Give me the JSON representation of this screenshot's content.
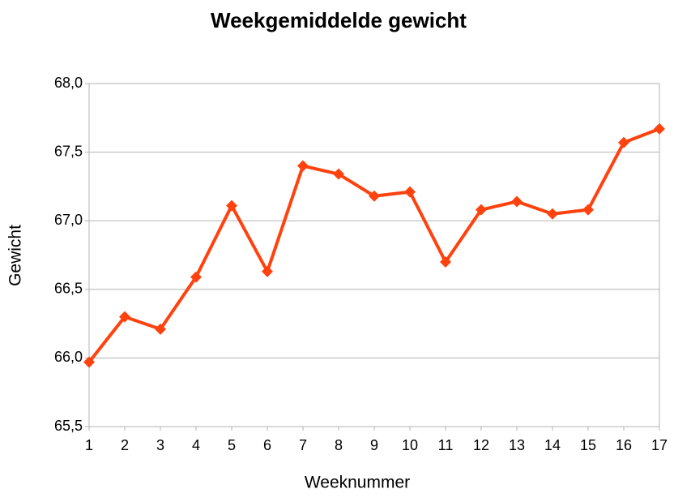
{
  "chart_data": {
    "type": "line",
    "title": "Weekgemiddelde gewicht",
    "x_label": "Weeknummer",
    "y_label": "Gewicht",
    "x": [
      1,
      2,
      3,
      4,
      5,
      6,
      7,
      8,
      9,
      10,
      11,
      12,
      13,
      14,
      15,
      16,
      17
    ],
    "series": [
      {
        "name": "Gewicht",
        "color": "#ff420e",
        "values": [
          65.97,
          66.3,
          66.21,
          66.59,
          67.11,
          66.63,
          67.4,
          67.34,
          67.18,
          67.21,
          66.7,
          67.08,
          67.14,
          67.05,
          67.08,
          67.57,
          67.67
        ]
      }
    ],
    "xlim": [
      1,
      17
    ],
    "xticks": [
      1,
      2,
      3,
      4,
      5,
      6,
      7,
      8,
      9,
      10,
      11,
      12,
      13,
      14,
      15,
      16,
      17
    ],
    "ylim": [
      65.5,
      68.0
    ],
    "yticks": [
      {
        "value": 65.5,
        "label": "65,5"
      },
      {
        "value": 66.0,
        "label": "66,0"
      },
      {
        "value": 66.5,
        "label": "66,5"
      },
      {
        "value": 67.0,
        "label": "67,0"
      },
      {
        "value": 67.5,
        "label": "67,5"
      },
      {
        "value": 68.0,
        "label": "68,0"
      }
    ],
    "grid": true
  }
}
